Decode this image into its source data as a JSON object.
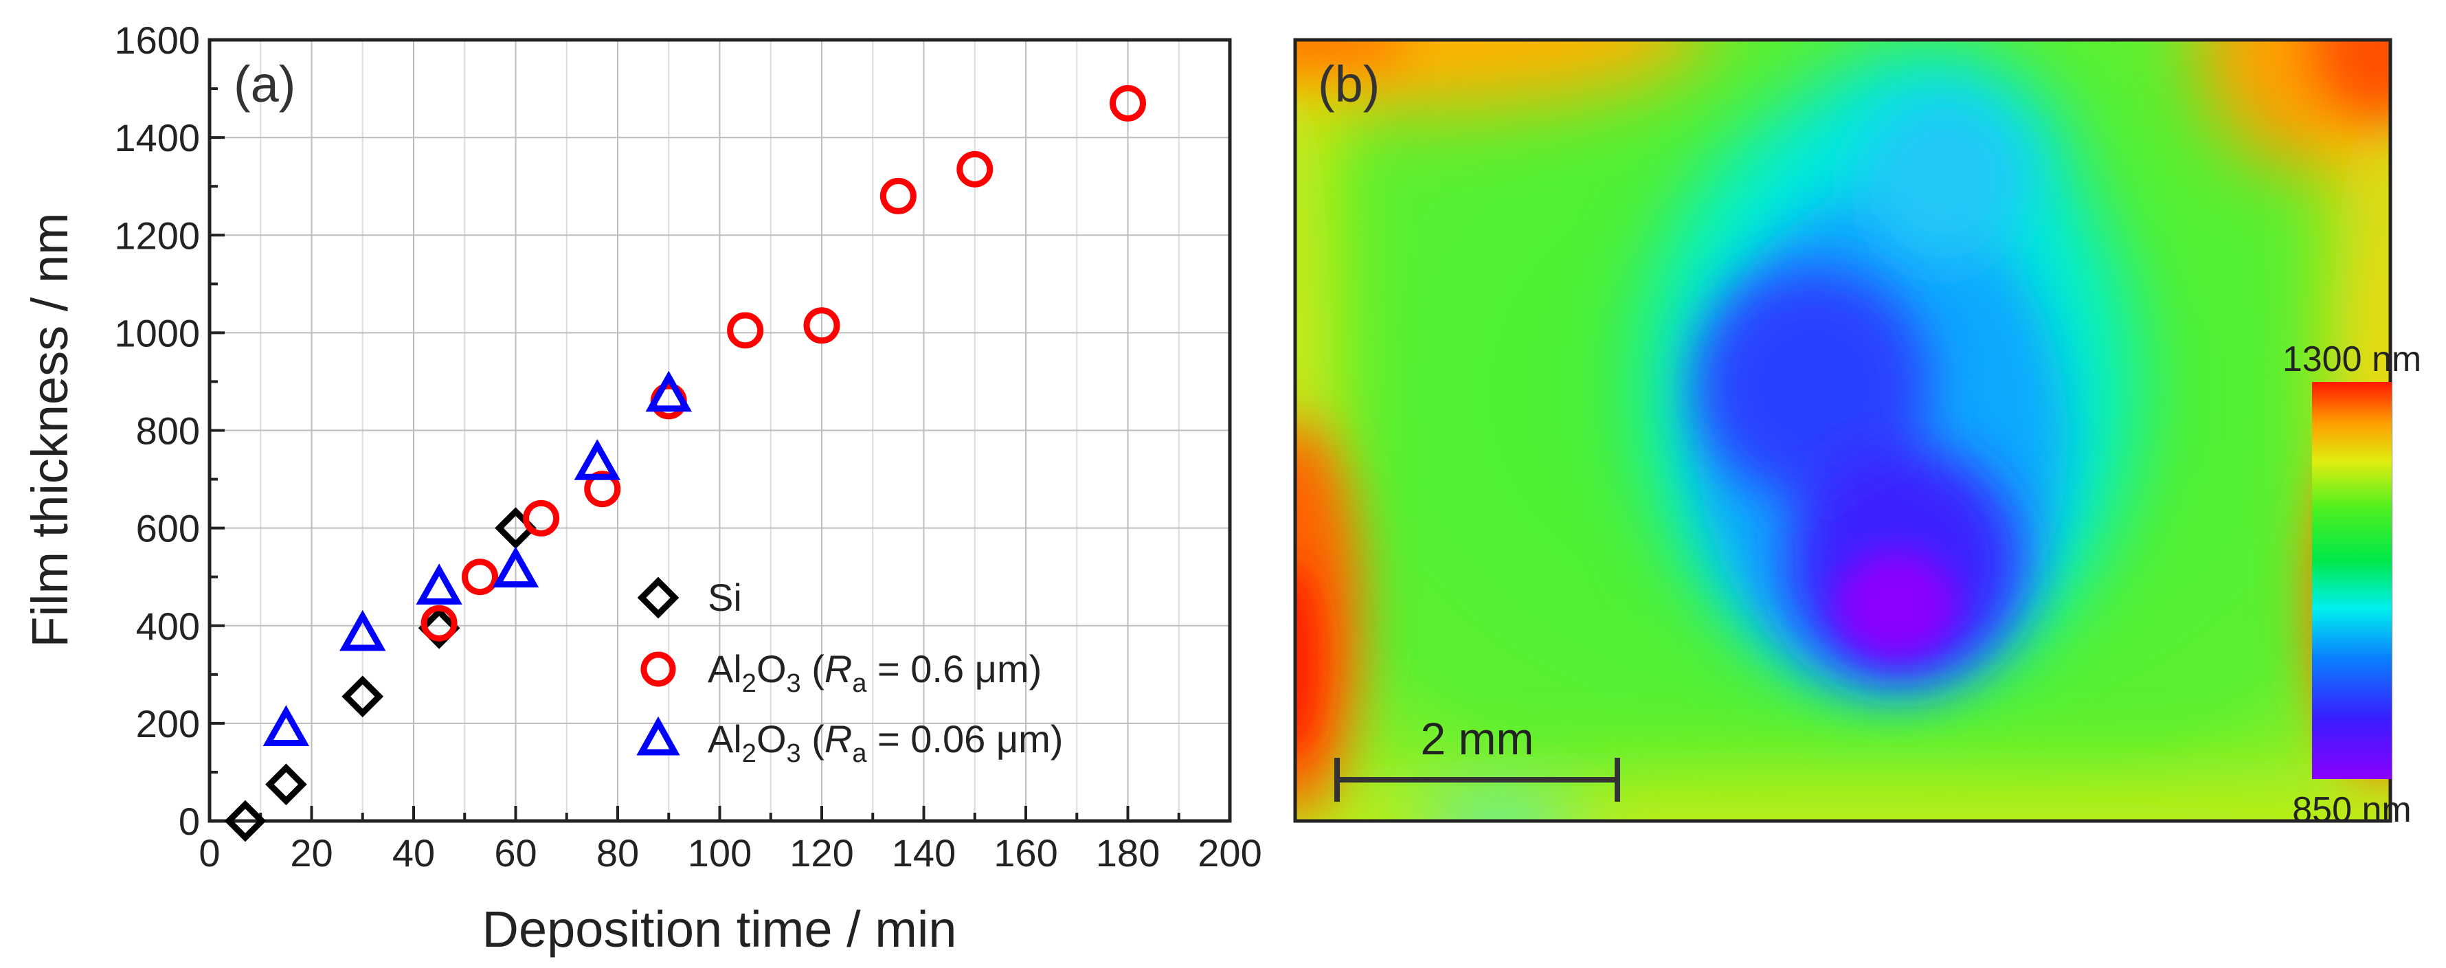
{
  "chart_data": [
    {
      "type": "scatter",
      "panel_label": "(a)",
      "xlabel": "Deposition time / min",
      "ylabel": "Film thickness / nm",
      "xlim": [
        0,
        200
      ],
      "ylim": [
        0,
        1600
      ],
      "grid": true,
      "x_ticks": [
        "0",
        "20",
        "40",
        "60",
        "80",
        "100",
        "120",
        "140",
        "160",
        "180",
        "200"
      ],
      "y_ticks": [
        "0",
        "200",
        "400",
        "600",
        "800",
        "1000",
        "1200",
        "1400",
        "1600"
      ],
      "legend_position": "bottom-right",
      "series": [
        {
          "name": "Si",
          "marker": "diamond",
          "color": "#000000",
          "legend": {
            "prefix": "Si"
          },
          "points": [
            [
              7,
              0
            ],
            [
              15,
              75
            ],
            [
              30,
              255
            ],
            [
              45,
              395
            ],
            [
              60,
              600
            ]
          ]
        },
        {
          "name": "Al2O3 (Ra = 0.6 μm)",
          "marker": "circle",
          "color": "#ff0000",
          "legend": {
            "prefix": "Al",
            "sub1": "2",
            "mid": "O",
            "sub2": "3",
            "paren_open": " (",
            "italic": "R",
            "sub3": "a",
            "rest": " = 0.6 μm)"
          },
          "points": [
            [
              45,
              405
            ],
            [
              53,
              500
            ],
            [
              65,
              620
            ],
            [
              77,
              680
            ],
            [
              90,
              860
            ],
            [
              105,
              1005
            ],
            [
              120,
              1015
            ],
            [
              135,
              1280
            ],
            [
              150,
              1335
            ],
            [
              180,
              1470
            ]
          ]
        },
        {
          "name": "Al2O3 (Ra = 0.06 μm)",
          "marker": "triangle",
          "color": "#0000ff",
          "legend": {
            "prefix": "Al",
            "sub1": "2",
            "mid": "O",
            "sub2": "3",
            "paren_open": " (",
            "italic": "R",
            "sub3": "a",
            "rest": " = 0.06 μm)"
          },
          "points": [
            [
              15,
              185
            ],
            [
              30,
              380
            ],
            [
              45,
              475
            ],
            [
              60,
              510
            ],
            [
              76,
              730
            ],
            [
              90,
              870
            ]
          ]
        }
      ]
    },
    {
      "type": "heatmap",
      "panel_label": "(b)",
      "colorbar": {
        "max_label": "1300 nm",
        "min_label": "850 nm",
        "max_value": 1300,
        "min_value": 850
      },
      "scale_bar_label": "2 mm"
    }
  ]
}
